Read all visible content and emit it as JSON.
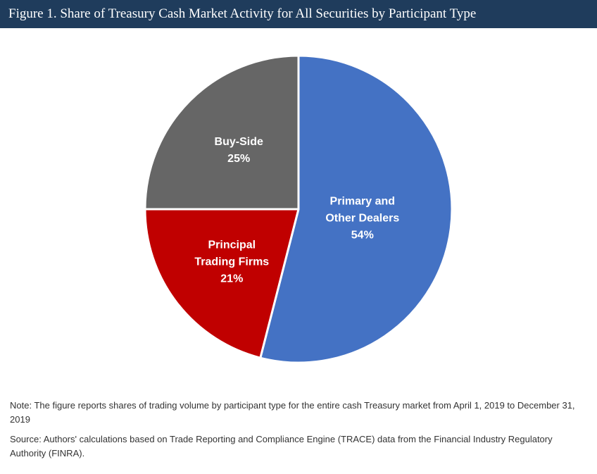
{
  "header": {
    "title": "Figure 1. Share of Treasury Cash Market Activity for All Securities by Participant Type"
  },
  "chart_data": {
    "type": "pie",
    "title": "Figure 1. Share of Treasury Cash Market Activity for All Securities by Participant Type",
    "unit": "%",
    "slices": [
      {
        "label_lines": [
          "Primary and",
          "Other Dealers"
        ],
        "value": 54,
        "value_label": "54%",
        "color": "#4472c4"
      },
      {
        "label_lines": [
          "Principal",
          "Trading Firms"
        ],
        "value": 21,
        "value_label": "21%",
        "color": "#c00000"
      },
      {
        "label_lines": [
          "Buy-Side"
        ],
        "value": 25,
        "value_label": "25%",
        "color": "#666666"
      }
    ],
    "start_angle_deg": 0,
    "direction": "clockwise"
  },
  "footer": {
    "note": "Note: The figure reports shares of trading volume by participant type for the entire cash Treasury market from April 1, 2019 to December 31, 2019",
    "source": "Source: Authors' calculations based on Trade Reporting and Compliance Engine (TRACE) data from the Financial Industry Regulatory Authority (FINRA)."
  }
}
